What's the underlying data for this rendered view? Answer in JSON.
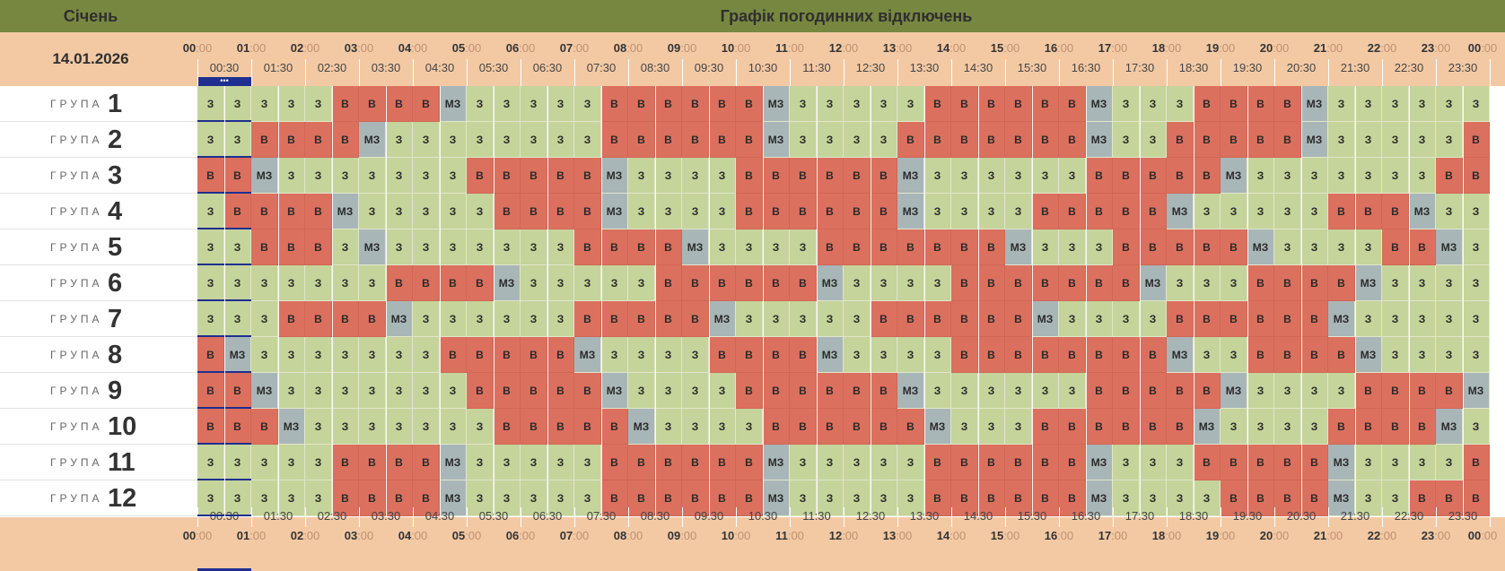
{
  "header": {
    "month": "Січень",
    "title": "Графік погодинних відключень",
    "date": "14.01.2026",
    "current_marker": "•••"
  },
  "legend_codes": {
    "З": "on",
    "В": "off",
    "МЗ": "possible-off"
  },
  "colors": {
    "header_bg": "#778740",
    "label_bg": "#f3c9a4",
    "on": "#c5d49a",
    "off": "#dc705e",
    "possible": "#a9b6b8",
    "marker": "#1e2f8f"
  },
  "hour_labels": [
    "00",
    "01",
    "02",
    "03",
    "04",
    "05",
    "06",
    "07",
    "08",
    "09",
    "10",
    "11",
    "12",
    "13",
    "14",
    "15",
    "16",
    "17",
    "18",
    "19",
    "20",
    "21",
    "22",
    "23",
    "00"
  ],
  "minute_suffix": ":00",
  "half_labels": [
    "00:30",
    "01:30",
    "02:30",
    "03:30",
    "04:30",
    "05:30",
    "06:30",
    "07:30",
    "08:30",
    "09:30",
    "10:30",
    "11:30",
    "12:30",
    "13:30",
    "14:30",
    "15:30",
    "16:30",
    "17:30",
    "18:30",
    "19:30",
    "20:30",
    "21:30",
    "22:30",
    "23:30"
  ],
  "group_word": "ГРУПА",
  "groups": [
    {
      "num": "1",
      "cells": [
        "З",
        "З",
        "З",
        "З",
        "З",
        "В",
        "В",
        "В",
        "В",
        "МЗ",
        "З",
        "З",
        "З",
        "З",
        "З",
        "В",
        "В",
        "В",
        "В",
        "В",
        "В",
        "МЗ",
        "З",
        "З",
        "З",
        "З",
        "З",
        "В",
        "В",
        "В",
        "В",
        "В",
        "В",
        "МЗ",
        "З",
        "З",
        "З",
        "В",
        "В",
        "В",
        "В",
        "МЗ",
        "З",
        "З",
        "З",
        "З",
        "З",
        "З"
      ]
    },
    {
      "num": "2",
      "cells": [
        "З",
        "З",
        "В",
        "В",
        "В",
        "В",
        "МЗ",
        "З",
        "З",
        "З",
        "З",
        "З",
        "З",
        "З",
        "З",
        "В",
        "В",
        "В",
        "В",
        "В",
        "В",
        "МЗ",
        "З",
        "З",
        "З",
        "З",
        "В",
        "В",
        "В",
        "В",
        "В",
        "В",
        "В",
        "МЗ",
        "З",
        "З",
        "В",
        "В",
        "В",
        "В",
        "В",
        "МЗ",
        "З",
        "З",
        "З",
        "З",
        "З",
        "В"
      ]
    },
    {
      "num": "3",
      "cells": [
        "В",
        "В",
        "МЗ",
        "З",
        "З",
        "З",
        "З",
        "З",
        "З",
        "З",
        "В",
        "В",
        "В",
        "В",
        "В",
        "МЗ",
        "З",
        "З",
        "З",
        "З",
        "В",
        "В",
        "В",
        "В",
        "В",
        "В",
        "МЗ",
        "З",
        "З",
        "З",
        "З",
        "З",
        "З",
        "В",
        "В",
        "В",
        "В",
        "В",
        "МЗ",
        "З",
        "З",
        "З",
        "З",
        "З",
        "З",
        "З",
        "В",
        "В"
      ]
    },
    {
      "num": "4",
      "cells": [
        "З",
        "В",
        "В",
        "В",
        "В",
        "МЗ",
        "З",
        "З",
        "З",
        "З",
        "З",
        "В",
        "В",
        "В",
        "В",
        "МЗ",
        "З",
        "З",
        "З",
        "З",
        "В",
        "В",
        "В",
        "В",
        "В",
        "В",
        "МЗ",
        "З",
        "З",
        "З",
        "З",
        "В",
        "В",
        "В",
        "В",
        "В",
        "МЗ",
        "З",
        "З",
        "З",
        "З",
        "З",
        "В",
        "В",
        "В",
        "МЗ",
        "З",
        "З"
      ]
    },
    {
      "num": "5",
      "cells": [
        "З",
        "З",
        "В",
        "В",
        "В",
        "З",
        "МЗ",
        "З",
        "З",
        "З",
        "З",
        "З",
        "З",
        "З",
        "В",
        "В",
        "В",
        "В",
        "МЗ",
        "З",
        "З",
        "З",
        "З",
        "В",
        "В",
        "В",
        "В",
        "В",
        "В",
        "В",
        "МЗ",
        "З",
        "З",
        "З",
        "В",
        "В",
        "В",
        "В",
        "В",
        "МЗ",
        "З",
        "З",
        "З",
        "З",
        "В",
        "В",
        "МЗ",
        "З"
      ]
    },
    {
      "num": "6",
      "cells": [
        "З",
        "З",
        "З",
        "З",
        "З",
        "З",
        "З",
        "В",
        "В",
        "В",
        "В",
        "МЗ",
        "З",
        "З",
        "З",
        "З",
        "З",
        "В",
        "В",
        "В",
        "В",
        "В",
        "В",
        "МЗ",
        "З",
        "З",
        "З",
        "З",
        "В",
        "В",
        "В",
        "В",
        "В",
        "В",
        "В",
        "МЗ",
        "З",
        "З",
        "З",
        "В",
        "В",
        "В",
        "В",
        "МЗ",
        "З",
        "З",
        "З",
        "З"
      ]
    },
    {
      "num": "7",
      "cells": [
        "З",
        "З",
        "З",
        "В",
        "В",
        "В",
        "В",
        "МЗ",
        "З",
        "З",
        "З",
        "З",
        "З",
        "З",
        "В",
        "В",
        "В",
        "В",
        "В",
        "МЗ",
        "З",
        "З",
        "З",
        "З",
        "З",
        "В",
        "В",
        "В",
        "В",
        "В",
        "В",
        "МЗ",
        "З",
        "З",
        "З",
        "З",
        "В",
        "В",
        "В",
        "В",
        "В",
        "В",
        "МЗ",
        "З",
        "З",
        "З",
        "З",
        "З"
      ]
    },
    {
      "num": "8",
      "cells": [
        "В",
        "МЗ",
        "З",
        "З",
        "З",
        "З",
        "З",
        "З",
        "З",
        "В",
        "В",
        "В",
        "В",
        "В",
        "МЗ",
        "З",
        "З",
        "З",
        "З",
        "В",
        "В",
        "В",
        "В",
        "МЗ",
        "З",
        "З",
        "З",
        "З",
        "В",
        "В",
        "В",
        "В",
        "В",
        "В",
        "В",
        "В",
        "МЗ",
        "З",
        "З",
        "В",
        "В",
        "В",
        "В",
        "МЗ",
        "З",
        "З",
        "З",
        "З"
      ]
    },
    {
      "num": "9",
      "cells": [
        "В",
        "В",
        "МЗ",
        "З",
        "З",
        "З",
        "З",
        "З",
        "З",
        "З",
        "В",
        "В",
        "В",
        "В",
        "В",
        "МЗ",
        "З",
        "З",
        "З",
        "З",
        "В",
        "В",
        "В",
        "В",
        "В",
        "В",
        "МЗ",
        "З",
        "З",
        "З",
        "З",
        "З",
        "З",
        "В",
        "В",
        "В",
        "В",
        "В",
        "МЗ",
        "З",
        "З",
        "З",
        "З",
        "В",
        "В",
        "В",
        "В",
        "МЗ"
      ]
    },
    {
      "num": "10",
      "cells": [
        "В",
        "В",
        "В",
        "МЗ",
        "З",
        "З",
        "З",
        "З",
        "З",
        "З",
        "З",
        "В",
        "В",
        "В",
        "В",
        "В",
        "МЗ",
        "З",
        "З",
        "З",
        "З",
        "В",
        "В",
        "В",
        "В",
        "В",
        "В",
        "МЗ",
        "З",
        "З",
        "З",
        "В",
        "В",
        "В",
        "В",
        "В",
        "В",
        "МЗ",
        "З",
        "З",
        "З",
        "З",
        "В",
        "В",
        "В",
        "В",
        "МЗ",
        "З"
      ]
    },
    {
      "num": "11",
      "cells": [
        "З",
        "З",
        "З",
        "З",
        "З",
        "В",
        "В",
        "В",
        "В",
        "МЗ",
        "З",
        "З",
        "З",
        "З",
        "З",
        "В",
        "В",
        "В",
        "В",
        "В",
        "В",
        "МЗ",
        "З",
        "З",
        "З",
        "З",
        "З",
        "В",
        "В",
        "В",
        "В",
        "В",
        "В",
        "МЗ",
        "З",
        "З",
        "З",
        "В",
        "В",
        "В",
        "В",
        "В",
        "МЗ",
        "З",
        "З",
        "З",
        "З",
        "В"
      ]
    },
    {
      "num": "12",
      "cells": [
        "З",
        "З",
        "З",
        "З",
        "З",
        "В",
        "В",
        "В",
        "В",
        "МЗ",
        "З",
        "З",
        "З",
        "З",
        "З",
        "В",
        "В",
        "В",
        "В",
        "В",
        "В",
        "МЗ",
        "З",
        "З",
        "З",
        "З",
        "З",
        "В",
        "В",
        "В",
        "В",
        "В",
        "В",
        "МЗ",
        "З",
        "З",
        "З",
        "З",
        "В",
        "В",
        "В",
        "В",
        "МЗ",
        "З",
        "З",
        "В",
        "В",
        "В"
      ]
    }
  ]
}
